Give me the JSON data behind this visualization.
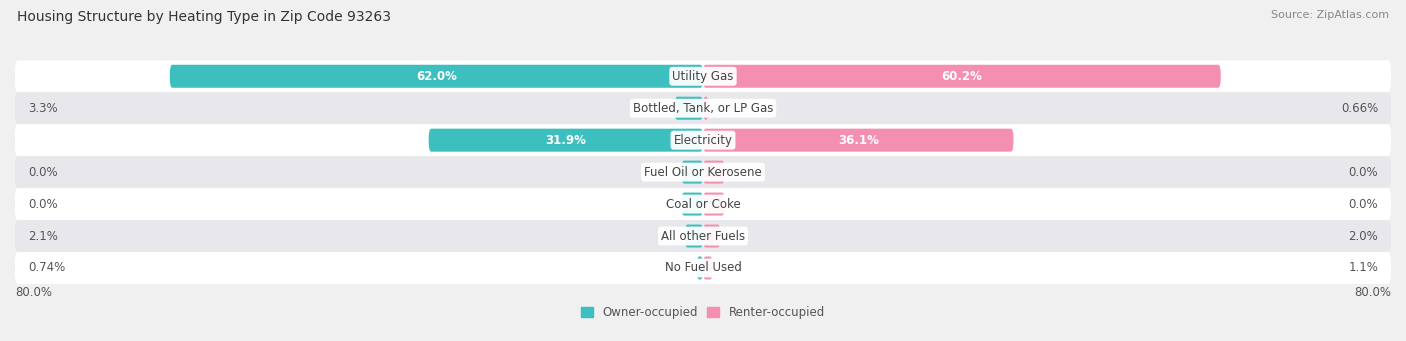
{
  "title": "Housing Structure by Heating Type in Zip Code 93263",
  "source": "Source: ZipAtlas.com",
  "categories": [
    "Utility Gas",
    "Bottled, Tank, or LP Gas",
    "Electricity",
    "Fuel Oil or Kerosene",
    "Coal or Coke",
    "All other Fuels",
    "No Fuel Used"
  ],
  "owner_values": [
    62.0,
    3.3,
    31.9,
    0.0,
    0.0,
    2.1,
    0.74
  ],
  "renter_values": [
    60.2,
    0.66,
    36.1,
    0.0,
    0.0,
    2.0,
    1.1
  ],
  "owner_labels": [
    "62.0%",
    "3.3%",
    "31.9%",
    "0.0%",
    "0.0%",
    "2.1%",
    "0.74%"
  ],
  "renter_labels": [
    "60.2%",
    "0.66%",
    "36.1%",
    "0.0%",
    "0.0%",
    "2.0%",
    "1.1%"
  ],
  "owner_color": "#3DBFBF",
  "renter_color": "#F48FB1",
  "owner_label": "Owner-occupied",
  "renter_label": "Renter-occupied",
  "axis_label_left": "80.0%",
  "axis_label_right": "80.0%",
  "max_val": 80.0,
  "bg_color": "#f0f0f0",
  "row_colors": [
    "#ffffff",
    "#e8e8ec",
    "#ffffff",
    "#e8e8ec",
    "#ffffff",
    "#e8e8ec",
    "#ffffff"
  ],
  "title_fontsize": 10,
  "source_fontsize": 8,
  "label_fontsize": 8.5,
  "category_fontsize": 8.5
}
